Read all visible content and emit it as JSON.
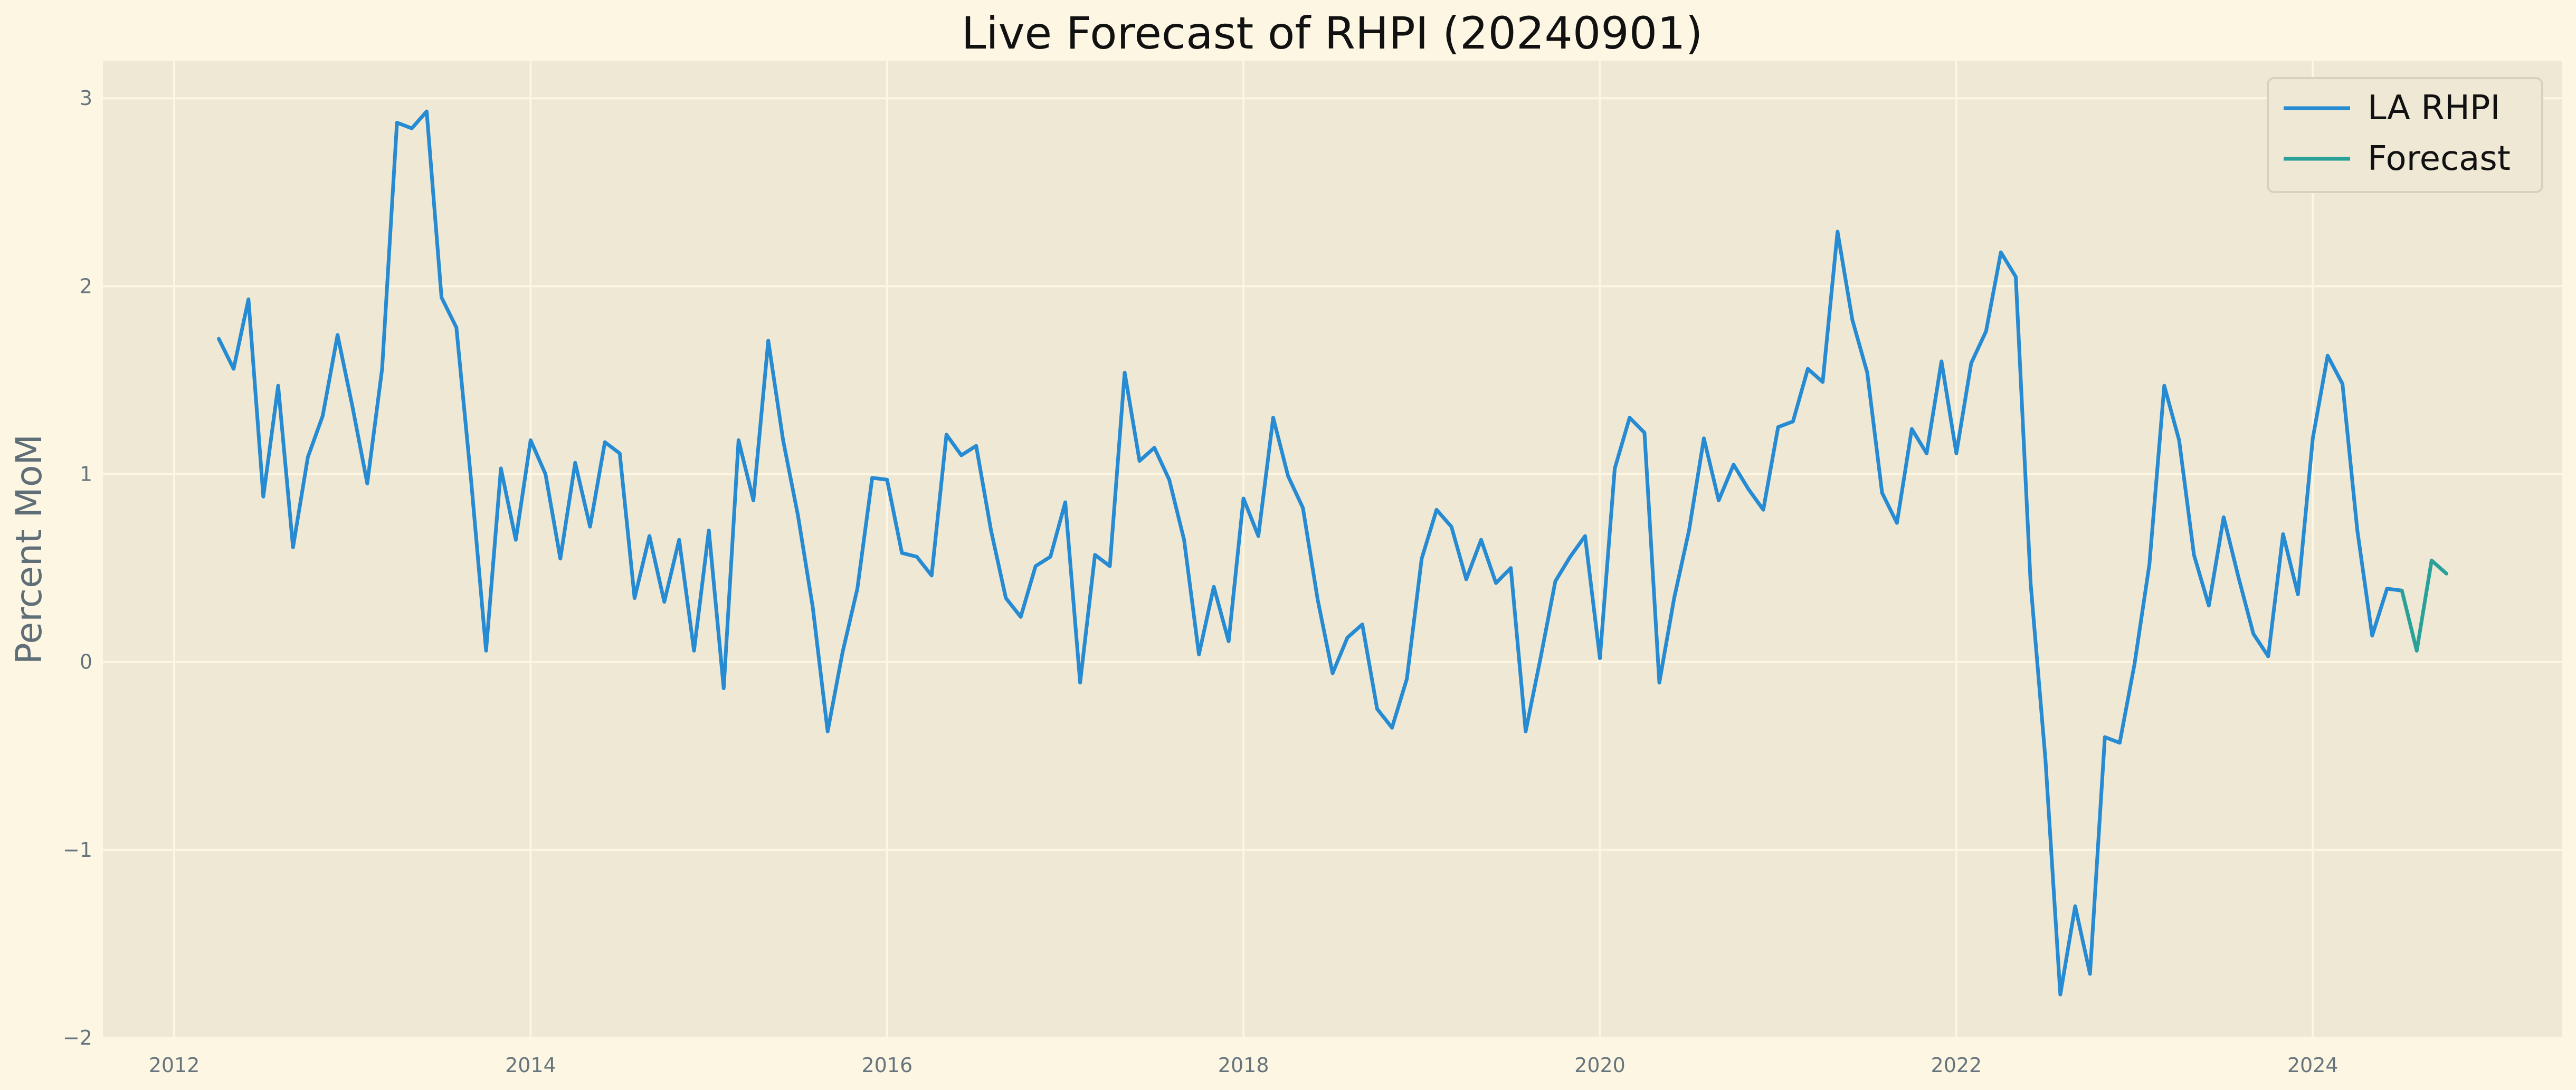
{
  "chart_data": {
    "type": "line",
    "title": "Live Forecast of RHPI (20240901)",
    "xlabel": "",
    "ylabel": "Percent MoM",
    "xlim": [
      2011.6,
      2025.4
    ],
    "ylim": [
      -2,
      3.2
    ],
    "x_ticks": [
      2012,
      2014,
      2016,
      2018,
      2020,
      2022,
      2024
    ],
    "x_tick_labels": [
      "2012",
      "2014",
      "2016",
      "2018",
      "2020",
      "2022",
      "2024"
    ],
    "y_ticks": [
      -2,
      -1,
      0,
      1,
      2,
      3
    ],
    "y_tick_labels": [
      "−2",
      "−1",
      "0",
      "1",
      "2",
      "3"
    ],
    "grid": true,
    "legend_position": "top-right",
    "colors": {
      "figure_background": "#fdf6e3",
      "plot_background": "#eee8d5",
      "grid": "#fdf6e3",
      "la_rhpi": "#268bd2",
      "forecast": "#2aa198"
    },
    "series": [
      {
        "name": "LA RHPI",
        "color": "#268bd2",
        "start_year": 2012,
        "start_month": 4,
        "values": [
          1.72,
          1.56,
          1.93,
          0.88,
          1.47,
          0.61,
          1.09,
          1.31,
          1.74,
          1.36,
          0.95,
          1.56,
          2.87,
          2.84,
          2.93,
          1.94,
          1.78,
          0.96,
          0.06,
          1.03,
          0.65,
          1.18,
          1.0,
          0.55,
          1.06,
          0.72,
          1.17,
          1.11,
          0.34,
          0.67,
          0.32,
          0.65,
          0.06,
          0.7,
          -0.14,
          1.18,
          0.86,
          1.71,
          1.18,
          0.78,
          0.29,
          -0.37,
          0.05,
          0.39,
          0.98,
          0.97,
          0.58,
          0.56,
          0.46,
          1.21,
          1.1,
          1.15,
          0.7,
          0.34,
          0.24,
          0.51,
          0.56,
          0.85,
          -0.11,
          0.57,
          0.51,
          1.54,
          1.07,
          1.14,
          0.97,
          0.65,
          0.04,
          0.4,
          0.11,
          0.87,
          0.67,
          1.3,
          0.99,
          0.82,
          0.33,
          -0.06,
          0.13,
          0.2,
          -0.25,
          -0.35,
          -0.09,
          0.55,
          0.81,
          0.72,
          0.44,
          0.65,
          0.42,
          0.5,
          -0.37,
          0.02,
          0.43,
          0.56,
          0.67,
          0.02,
          1.03,
          1.3,
          1.22,
          -0.11,
          0.34,
          0.7,
          1.19,
          0.86,
          1.05,
          0.92,
          0.81,
          1.25,
          1.28,
          1.56,
          1.49,
          2.29,
          1.82,
          1.54,
          0.9,
          0.74,
          1.24,
          1.11,
          1.6,
          1.11,
          1.59,
          1.76,
          2.18,
          2.05,
          0.42,
          -0.52,
          -1.77,
          -1.3,
          -1.66,
          -0.4,
          -0.43,
          -0.01,
          0.52,
          1.47,
          1.18,
          0.57,
          0.3,
          0.77,
          0.45,
          0.15,
          0.03,
          0.68,
          0.36,
          1.19,
          1.63,
          1.48,
          0.7,
          0.14,
          0.39,
          0.38
        ]
      },
      {
        "name": "Forecast",
        "color": "#2aa198",
        "start_year": 2024,
        "start_month": 7,
        "values": [
          0.38,
          0.06,
          0.54,
          0.47
        ]
      }
    ]
  }
}
